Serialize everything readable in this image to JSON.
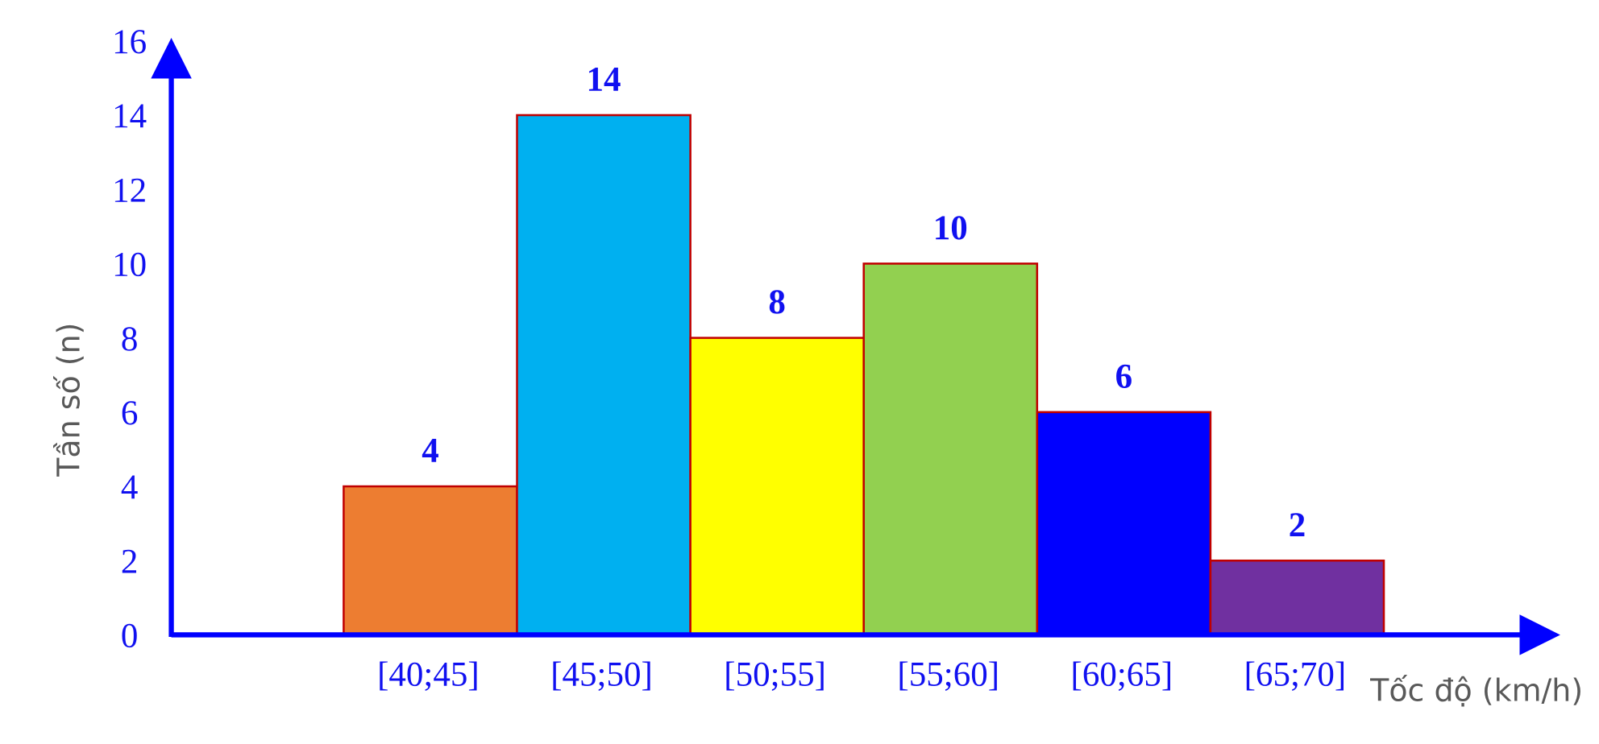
{
  "chart_data": {
    "type": "bar",
    "categories": [
      "[40;45]",
      "[45;50]",
      "[50;55]",
      "[55;60]",
      "[60;65]",
      "[65;70]"
    ],
    "values": [
      4,
      14,
      8,
      10,
      6,
      2
    ],
    "colors": [
      "#ed7d31",
      "#00b0f0",
      "#ffff00",
      "#92d050",
      "#0000ff",
      "#7030a0"
    ],
    "edgecolor": "#c00000",
    "ylim": [
      0,
      16
    ],
    "yticks": [
      0,
      2,
      4,
      6,
      8,
      10,
      12,
      14,
      16
    ],
    "x_label": "Tốc độ (km/h)",
    "y_label": "Tần số (n)"
  }
}
